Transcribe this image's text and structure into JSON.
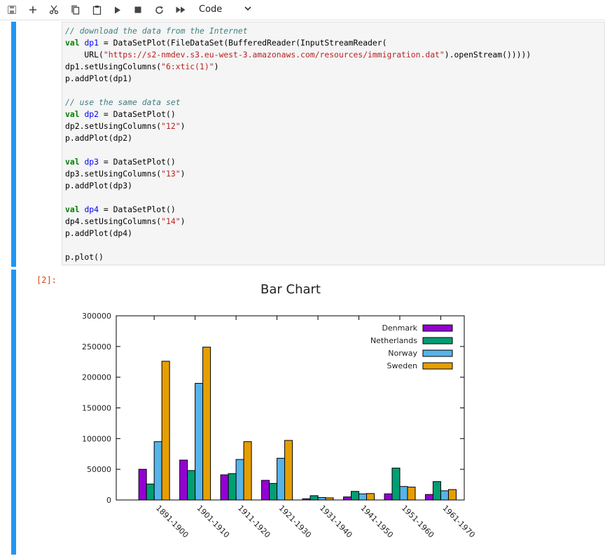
{
  "toolbar": {
    "buttons": [
      {
        "name": "save-button",
        "icon": "save-icon"
      },
      {
        "name": "insert-cell-button",
        "icon": "plus-icon"
      },
      {
        "name": "cut-button",
        "icon": "scissors-icon"
      },
      {
        "name": "copy-button",
        "icon": "copy-icon"
      },
      {
        "name": "paste-button",
        "icon": "paste-icon"
      },
      {
        "name": "run-button",
        "icon": "play-icon"
      },
      {
        "name": "stop-button",
        "icon": "stop-icon"
      },
      {
        "name": "restart-button",
        "icon": "restart-icon"
      },
      {
        "name": "run-all-button",
        "icon": "fast-forward-icon"
      }
    ],
    "cell_type": "Code"
  },
  "code_cell": {
    "lines": [
      "// download the data from the Internet",
      "val dp1 = DataSetPlot(FileDataSet(BufferedReader(InputStreamReader(",
      "    URL(\"https://s2-nmdev.s3.eu-west-3.amazonaws.com/resources/immigration.dat\").openStream()))))",
      "dp1.setUsingColumns(\"6:xtic(1)\")",
      "p.addPlot(dp1)",
      "",
      "// use the same data set",
      "val dp2 = DataSetPlot()",
      "dp2.setUsingColumns(\"12\")",
      "p.addPlot(dp2)",
      "",
      "val dp3 = DataSetPlot()",
      "dp3.setUsingColumns(\"13\")",
      "p.addPlot(dp3)",
      "",
      "val dp4 = DataSetPlot()",
      "dp4.setUsingColumns(\"14\")",
      "p.addPlot(dp4)",
      "",
      "p.plot()"
    ]
  },
  "output_cell": {
    "prompt": "[2]:"
  },
  "chart_data": {
    "type": "bar",
    "title": "Bar Chart",
    "xlabel": "",
    "ylabel": "",
    "ylim": [
      0,
      300000
    ],
    "yticks": [
      0,
      50000,
      100000,
      150000,
      200000,
      250000,
      300000
    ],
    "legend_position": "top-right",
    "categories": [
      "1891-1900",
      "1901-1910",
      "1911-1920",
      "1921-1930",
      "1931-1940",
      "1941-1950",
      "1951-1960",
      "1961-1970"
    ],
    "series": [
      {
        "name": "Denmark",
        "color": "#9400d3",
        "values": [
          50000,
          65000,
          41000,
          32000,
          2000,
          5000,
          10000,
          9000
        ]
      },
      {
        "name": "Netherlands",
        "color": "#009e73",
        "values": [
          26000,
          48000,
          43000,
          27000,
          7000,
          14000,
          52000,
          30000
        ]
      },
      {
        "name": "Norway",
        "color": "#56b4e9",
        "values": [
          95000,
          190000,
          66000,
          68000,
          4000,
          10000,
          22000,
          15000
        ]
      },
      {
        "name": "Sweden",
        "color": "#e69f00",
        "values": [
          226000,
          249000,
          95000,
          97000,
          3500,
          10500,
          21000,
          17000
        ]
      }
    ]
  }
}
